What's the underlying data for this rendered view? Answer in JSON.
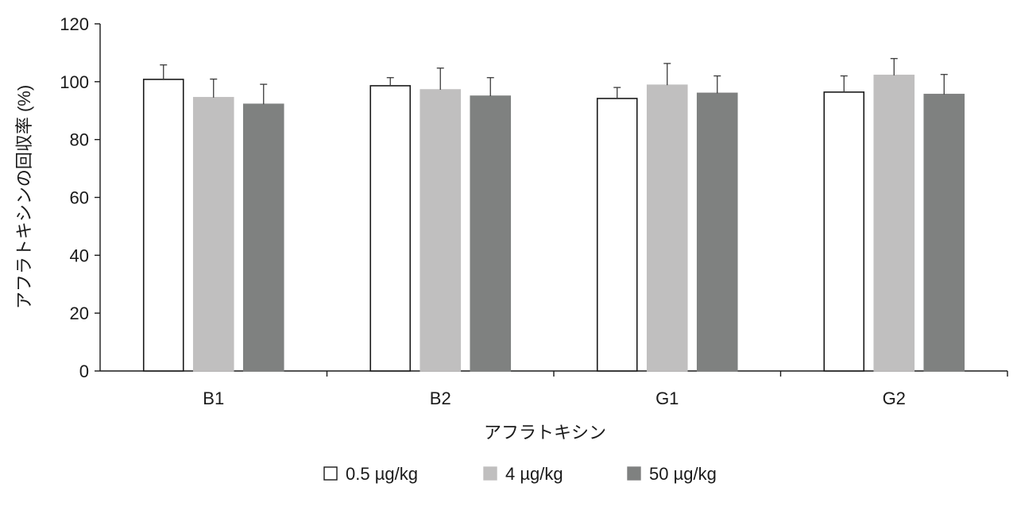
{
  "chart_data": {
    "type": "bar",
    "xlabel": "アフラトキシン",
    "ylabel": "アフラトキシンの回収率 (%)",
    "categories": [
      "B1",
      "B2",
      "G1",
      "G2"
    ],
    "ylim": [
      0,
      120
    ],
    "yticks": [
      0,
      20,
      40,
      60,
      80,
      100,
      120
    ],
    "grid": false,
    "legend_position": "bottom",
    "series": [
      {
        "name": "0.5 µg/kg",
        "color": "#ffffff",
        "stroke": "#1a1a1a",
        "values": [
          100.8,
          98.6,
          94.2,
          96.4
        ],
        "errors": [
          5.0,
          2.8,
          3.8,
          5.6
        ]
      },
      {
        "name": "4 µg/kg",
        "color": "#c0bfbf",
        "stroke": "#c0bfbf",
        "values": [
          94.5,
          97.2,
          98.8,
          102.2
        ],
        "errors": [
          6.4,
          7.5,
          7.5,
          5.8
        ]
      },
      {
        "name": "50 µg/kg",
        "color": "#7f8180",
        "stroke": "#7f8180",
        "values": [
          92.2,
          95.0,
          96.0,
          95.6
        ],
        "errors": [
          6.9,
          6.4,
          6.0,
          6.9
        ]
      }
    ]
  }
}
